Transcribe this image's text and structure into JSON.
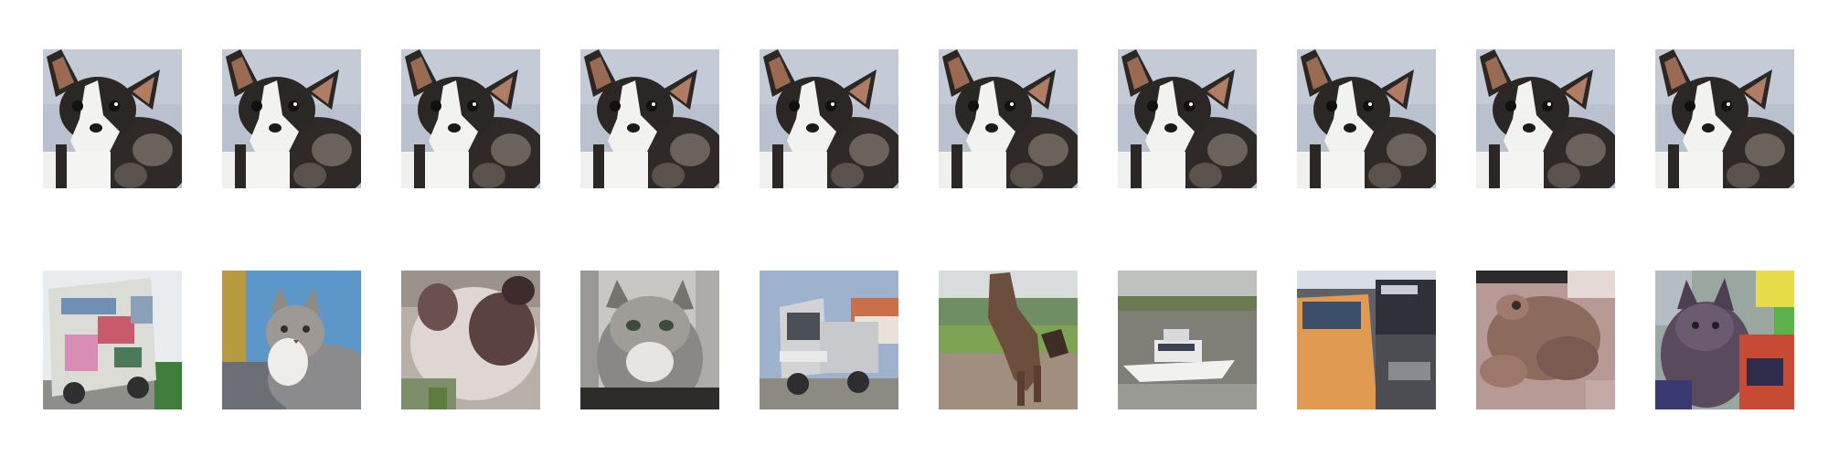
{
  "grid": {
    "rows": 2,
    "columns": 10,
    "top_row": [
      {
        "subject": "dog",
        "icon": "chihuahua-dog-image"
      },
      {
        "subject": "dog",
        "icon": "chihuahua-dog-image"
      },
      {
        "subject": "dog",
        "icon": "chihuahua-dog-image"
      },
      {
        "subject": "dog",
        "icon": "chihuahua-dog-image"
      },
      {
        "subject": "dog",
        "icon": "chihuahua-dog-image"
      },
      {
        "subject": "dog",
        "icon": "chihuahua-dog-image"
      },
      {
        "subject": "dog",
        "icon": "chihuahua-dog-image"
      },
      {
        "subject": "dog",
        "icon": "chihuahua-dog-image"
      },
      {
        "subject": "dog",
        "icon": "chihuahua-dog-image"
      },
      {
        "subject": "dog",
        "icon": "chihuahua-dog-image"
      }
    ],
    "bottom_row": [
      {
        "subject": "truck",
        "icon": "truck-image"
      },
      {
        "subject": "cat",
        "icon": "cat-image"
      },
      {
        "subject": "cat",
        "icon": "cat-image"
      },
      {
        "subject": "cat",
        "icon": "cat-image"
      },
      {
        "subject": "truck",
        "icon": "truck-image"
      },
      {
        "subject": "horse",
        "icon": "horse-image"
      },
      {
        "subject": "ship",
        "icon": "ship-image"
      },
      {
        "subject": "automobile",
        "icon": "automobile-image"
      },
      {
        "subject": "frog",
        "icon": "frog-image"
      },
      {
        "subject": "cat",
        "icon": "cat-image"
      }
    ]
  },
  "colors": {
    "background": "#ffffff",
    "sky": "#b9c1cf",
    "dog_dark": "#2b2724",
    "dog_white": "#f2f2f0",
    "ear_brown": "#9a6a52"
  }
}
